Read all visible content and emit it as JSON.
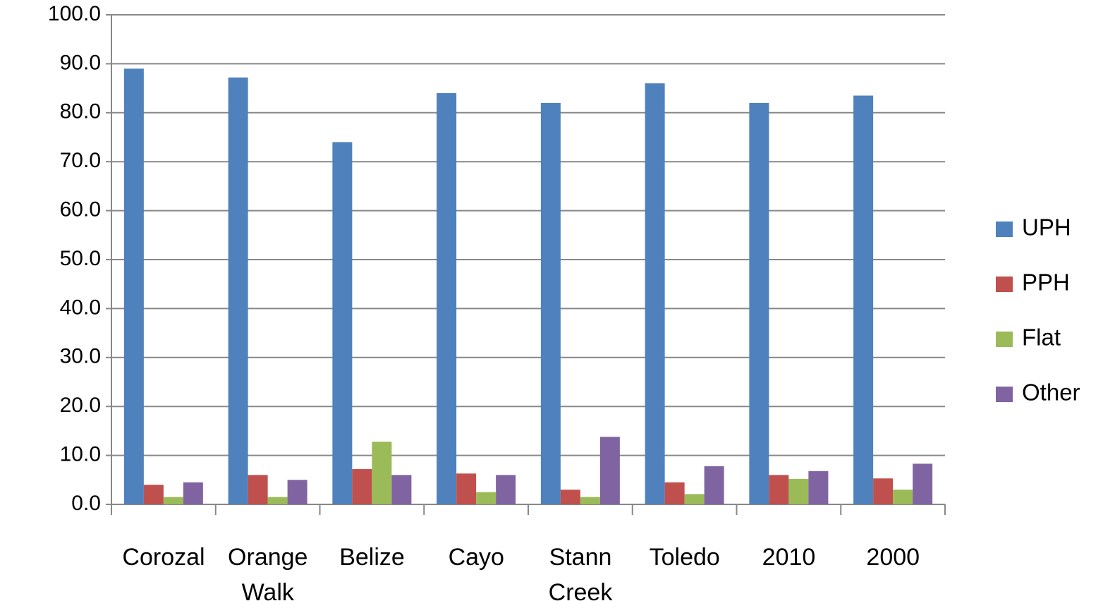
{
  "chart_data": {
    "type": "bar",
    "categories": [
      "Corozal",
      "Orange Walk",
      "Belize",
      "Cayo",
      "Stann Creek",
      "Toledo",
      "2010",
      "2000"
    ],
    "series": [
      {
        "name": "UPH",
        "color": "#4f81bd",
        "values": [
          89.0,
          87.2,
          74.0,
          84.0,
          82.0,
          86.0,
          82.0,
          83.5
        ]
      },
      {
        "name": "PPH",
        "color": "#c0504d",
        "values": [
          4.0,
          6.0,
          7.2,
          6.3,
          3.0,
          4.5,
          6.0,
          5.3
        ]
      },
      {
        "name": "Flat",
        "color": "#9bbb59",
        "values": [
          1.5,
          1.5,
          12.8,
          2.5,
          1.5,
          2.1,
          5.2,
          3.0
        ]
      },
      {
        "name": "Other",
        "color": "#8064a2",
        "values": [
          4.5,
          5.0,
          6.0,
          6.0,
          13.8,
          7.8,
          6.8,
          8.3
        ]
      }
    ],
    "ylim": [
      0,
      100
    ],
    "yticks": [
      {
        "value": 0,
        "label": "0.0"
      },
      {
        "value": 10,
        "label": "10.0"
      },
      {
        "value": 20,
        "label": "20.0"
      },
      {
        "value": 30,
        "label": "30.0"
      },
      {
        "value": 40,
        "label": "40.0"
      },
      {
        "value": 50,
        "label": "50.0"
      },
      {
        "value": 60,
        "label": "60.0"
      },
      {
        "value": 70,
        "label": "70.0"
      },
      {
        "value": 80,
        "label": "80.0"
      },
      {
        "value": 90,
        "label": "90.0"
      },
      {
        "value": 100,
        "label": "100.0"
      }
    ],
    "grid": true,
    "legend": "right"
  }
}
